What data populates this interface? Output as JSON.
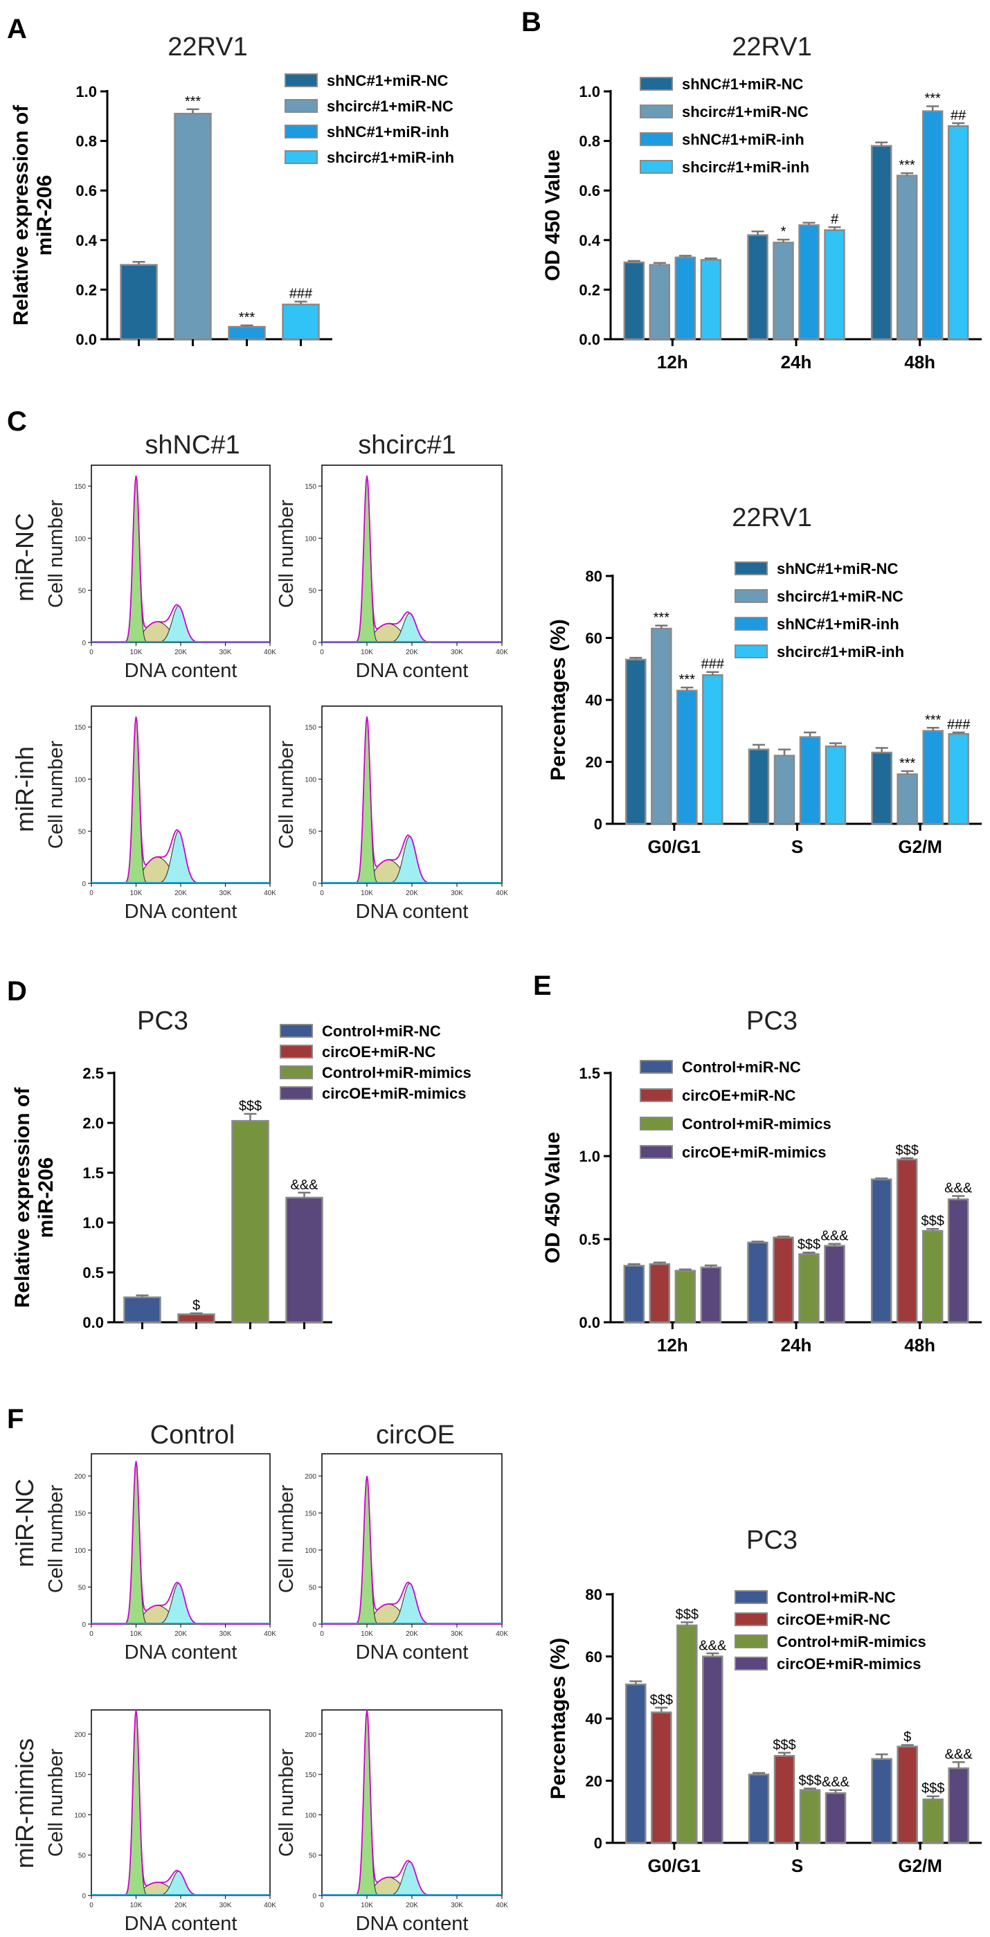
{
  "panel_labels": [
    "A",
    "B",
    "C",
    "D",
    "E",
    "F"
  ],
  "colors": {
    "palette_blue": [
      "#1f6a97",
      "#6c9bb8",
      "#1d9ae0",
      "#31c3f6"
    ],
    "palette_pc3": [
      "#3d5a92",
      "#a03a3a",
      "#76943f",
      "#5a477c"
    ],
    "err": "#777777",
    "flow_g1": "#9edc84",
    "flow_s": "#d9d69a",
    "flow_g2": "#9feff2",
    "flow_line": "#d000d0"
  },
  "chart_data": [
    {
      "id": "A",
      "type": "bar",
      "title": "22RV1",
      "ylabel": "Relative expression of miR-206",
      "ylabel_lines": [
        "Relative expression of",
        "miR-206"
      ],
      "ylim": [
        0,
        1.0
      ],
      "yticks": [
        "0.0",
        "0.2",
        "0.4",
        "0.6",
        "0.8",
        "1.0"
      ],
      "legend": [
        "shNC#1+miR-NC",
        "shcirc#1+miR-NC",
        "shNC#1+miR-inh",
        "shcirc#1+miR-inh"
      ],
      "values": [
        0.3,
        0.91,
        0.05,
        0.14
      ],
      "errors": [
        0.012,
        0.018,
        0.006,
        0.012
      ],
      "annotations": [
        "",
        "***",
        "***",
        "###"
      ]
    },
    {
      "id": "B",
      "type": "bar",
      "title": "22RV1",
      "ylabel": "OD 450 Value",
      "ylim": [
        0,
        1.0
      ],
      "yticks": [
        "0.0",
        "0.2",
        "0.4",
        "0.6",
        "0.8",
        "1.0"
      ],
      "categories": [
        "12h",
        "24h",
        "48h"
      ],
      "series": [
        {
          "name": "shNC#1+miR-NC",
          "values": [
            0.31,
            0.42,
            0.78
          ],
          "errors": [
            0.006,
            0.015,
            0.014
          ],
          "annotations": [
            "",
            "",
            ""
          ]
        },
        {
          "name": "shcirc#1+miR-NC",
          "values": [
            0.3,
            0.39,
            0.66
          ],
          "errors": [
            0.008,
            0.012,
            0.01
          ],
          "annotations": [
            "",
            "*",
            "***"
          ]
        },
        {
          "name": "shNC#1+miR-inh",
          "values": [
            0.33,
            0.46,
            0.92
          ],
          "errors": [
            0.007,
            0.01,
            0.02
          ],
          "annotations": [
            "",
            "",
            "***"
          ]
        },
        {
          "name": "shcirc#1+miR-inh",
          "values": [
            0.32,
            0.44,
            0.86
          ],
          "errors": [
            0.006,
            0.012,
            0.012
          ],
          "annotations": [
            "",
            "#",
            "##"
          ]
        }
      ]
    },
    {
      "id": "C-right",
      "type": "bar",
      "title": "22RV1",
      "ylabel": "Percentages (%)",
      "ylim": [
        0,
        80
      ],
      "yticks": [
        "0",
        "20",
        "40",
        "60",
        "80"
      ],
      "categories": [
        "G0/G1",
        "S",
        "G2/M"
      ],
      "series": [
        {
          "name": "shNC#1+miR-NC",
          "values": [
            53,
            24,
            23
          ],
          "errors": [
            0.6,
            1.5,
            1.5
          ],
          "annotations": [
            "",
            "",
            ""
          ]
        },
        {
          "name": "shcirc#1+miR-NC",
          "values": [
            63,
            22,
            16
          ],
          "errors": [
            1.0,
            2.0,
            1.0
          ],
          "annotations": [
            "***",
            "",
            "***"
          ]
        },
        {
          "name": "shNC#1+miR-inh",
          "values": [
            43,
            28,
            30
          ],
          "errors": [
            1.0,
            1.5,
            1.0
          ],
          "annotations": [
            "***",
            "",
            "***"
          ]
        },
        {
          "name": "shcirc#1+miR-inh",
          "values": [
            48,
            25,
            29
          ],
          "errors": [
            1.0,
            1.0,
            0.5
          ],
          "annotations": [
            "###",
            "",
            "###"
          ]
        }
      ]
    },
    {
      "id": "D",
      "type": "bar",
      "title": "PC3",
      "ylabel": "Relative expression of miR-206",
      "ylabel_lines": [
        "Relative expression of",
        "miR-206"
      ],
      "ylim": [
        0,
        2.5
      ],
      "yticks": [
        "0.0",
        "0.5",
        "1.0",
        "1.5",
        "2.0",
        "2.5"
      ],
      "legend": [
        "Control+miR-NC",
        "circOE+miR-NC",
        "Control+miR-mimics",
        "circOE+miR-mimics"
      ],
      "values": [
        0.25,
        0.08,
        2.02,
        1.25
      ],
      "errors": [
        0.02,
        0.01,
        0.07,
        0.05
      ],
      "annotations": [
        "",
        "$",
        "$$$",
        "&&&"
      ]
    },
    {
      "id": "E",
      "type": "bar",
      "title": "PC3",
      "ylabel": "OD 450 Value",
      "ylim": [
        0,
        1.5
      ],
      "yticks": [
        "0.0",
        "0.5",
        "1.0",
        "1.5"
      ],
      "categories": [
        "12h",
        "24h",
        "48h"
      ],
      "series": [
        {
          "name": "Control+miR-NC",
          "values": [
            0.34,
            0.48,
            0.86
          ],
          "errors": [
            0.01,
            0.006,
            0.006
          ],
          "annotations": [
            "",
            "",
            ""
          ]
        },
        {
          "name": "circOE+miR-NC",
          "values": [
            0.35,
            0.51,
            0.98
          ],
          "errors": [
            0.01,
            0.006,
            0.008
          ],
          "annotations": [
            "",
            "",
            "$$$"
          ]
        },
        {
          "name": "Control+miR-mimics",
          "values": [
            0.31,
            0.41,
            0.55
          ],
          "errors": [
            0.008,
            0.01,
            0.012
          ],
          "annotations": [
            "",
            "$$$",
            "$$$"
          ]
        },
        {
          "name": "circOE+miR-mimics",
          "values": [
            0.33,
            0.46,
            0.74
          ],
          "errors": [
            0.012,
            0.012,
            0.02
          ],
          "annotations": [
            "",
            "&&&",
            "&&&"
          ]
        }
      ]
    },
    {
      "id": "F-right",
      "type": "bar",
      "title": "PC3",
      "ylabel": "Percentages (%)",
      "ylim": [
        0,
        80
      ],
      "yticks": [
        "0",
        "20",
        "40",
        "60",
        "80"
      ],
      "categories": [
        "G0/G1",
        "S",
        "G2/M"
      ],
      "series": [
        {
          "name": "Control+miR-NC",
          "values": [
            51,
            22,
            27
          ],
          "errors": [
            1.0,
            0.5,
            1.5
          ],
          "annotations": [
            "",
            "",
            ""
          ]
        },
        {
          "name": "circOE+miR-NC",
          "values": [
            42,
            28,
            31
          ],
          "errors": [
            1.5,
            1.0,
            0.5
          ],
          "annotations": [
            "$$$",
            "$$$",
            "$"
          ]
        },
        {
          "name": "Control+miR-mimics",
          "values": [
            70,
            17,
            14
          ],
          "errors": [
            1.0,
            0.5,
            1.0
          ],
          "annotations": [
            "$$$",
            "$$$",
            "$$$"
          ]
        },
        {
          "name": "circOE+miR-mimics",
          "values": [
            60,
            16,
            24
          ],
          "errors": [
            1.0,
            1.0,
            2.0
          ],
          "annotations": [
            "&&&",
            "&&&",
            "&&&"
          ]
        }
      ]
    },
    {
      "id": "C-flow",
      "type": "histogram",
      "columns": [
        "shNC#1",
        "shcirc#1"
      ],
      "rows": [
        "miR-NC",
        "miR-inh"
      ],
      "xlabel": "DNA content",
      "ylabel": "Cell number",
      "xticks": [
        "0",
        "10K",
        "20K",
        "30K",
        "40K"
      ],
      "yticks": [
        "0",
        "50",
        "100",
        "150"
      ],
      "ymax": 170,
      "plots": [
        {
          "g1_height": 160,
          "g2_height": 35,
          "s_height": 22
        },
        {
          "g1_height": 160,
          "g2_height": 28,
          "s_height": 20
        },
        {
          "g1_height": 160,
          "g2_height": 50,
          "s_height": 28
        },
        {
          "g1_height": 160,
          "g2_height": 45,
          "s_height": 25
        }
      ]
    },
    {
      "id": "F-flow",
      "type": "histogram",
      "columns": [
        "Control",
        "circOE"
      ],
      "rows": [
        "miR-NC",
        "miR-mimics"
      ],
      "xlabel": "DNA content",
      "ylabel": "Cell number",
      "xticks": [
        "0",
        "10K",
        "20K",
        "30K",
        "40K"
      ],
      "yticks": [
        "0",
        "50",
        "100",
        "150",
        "200"
      ],
      "ymax": 230,
      "plots": [
        {
          "g1_height": 220,
          "g2_height": 55,
          "s_height": 28
        },
        {
          "g1_height": 200,
          "g2_height": 55,
          "s_height": 30
        },
        {
          "g1_height": 230,
          "g2_height": 30,
          "s_height": 18
        },
        {
          "g1_height": 230,
          "g2_height": 42,
          "s_height": 25
        }
      ]
    }
  ]
}
